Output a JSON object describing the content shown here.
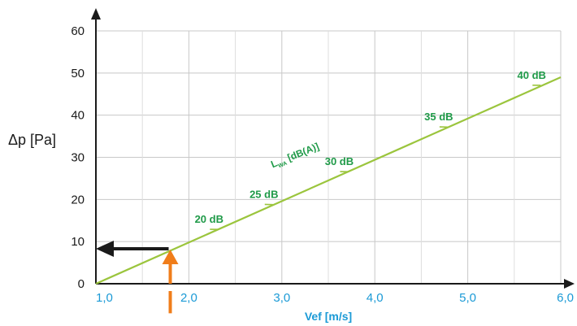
{
  "chart_data": {
    "type": "line",
    "xlabel": "Vef [m/s]",
    "ylabel": "Δp [Pa]",
    "xlim": [
      1.0,
      6.0
    ],
    "ylim": [
      0,
      60
    ],
    "x_ticks": [
      1.0,
      2.0,
      3.0,
      4.0,
      5.0,
      6.0
    ],
    "x_tick_labels": [
      "1,0",
      "2,0",
      "3,0",
      "4,0",
      "5,0",
      "6,0"
    ],
    "y_ticks": [
      0,
      10,
      20,
      30,
      40,
      50,
      60
    ],
    "y_tick_labels": [
      "0",
      "10",
      "20",
      "30",
      "40",
      "50",
      "60"
    ],
    "grid": true,
    "series": [
      {
        "name": "LWA [dB(A)]",
        "x": [
          1.0,
          6.0
        ],
        "y": [
          0,
          49
        ],
        "color": "#9bc53d"
      }
    ],
    "series_label": {
      "main": "L",
      "sub": "WA",
      "rest": " [dB(A)]",
      "x": 2.9,
      "y": 27.5,
      "angle": -22
    },
    "markers": [
      {
        "label": "20 dB",
        "x": 2.27,
        "y": 12.9
      },
      {
        "label": "25 dB",
        "x": 2.86,
        "y": 18.8
      },
      {
        "label": "30 dB",
        "x": 3.67,
        "y": 26.6
      },
      {
        "label": "35 dB",
        "x": 4.74,
        "y": 37.2
      },
      {
        "label": "40 dB",
        "x": 5.74,
        "y": 47.1
      }
    ],
    "annotations": [
      {
        "type": "arrow-up",
        "x": 1.8,
        "y_from": -2,
        "y_to": 8.5,
        "color": "#f07d1a"
      },
      {
        "type": "arrow-left",
        "y": 8.3,
        "x_from": 1.8,
        "x_to": 1.0,
        "color": "#1a1a1a"
      }
    ]
  }
}
